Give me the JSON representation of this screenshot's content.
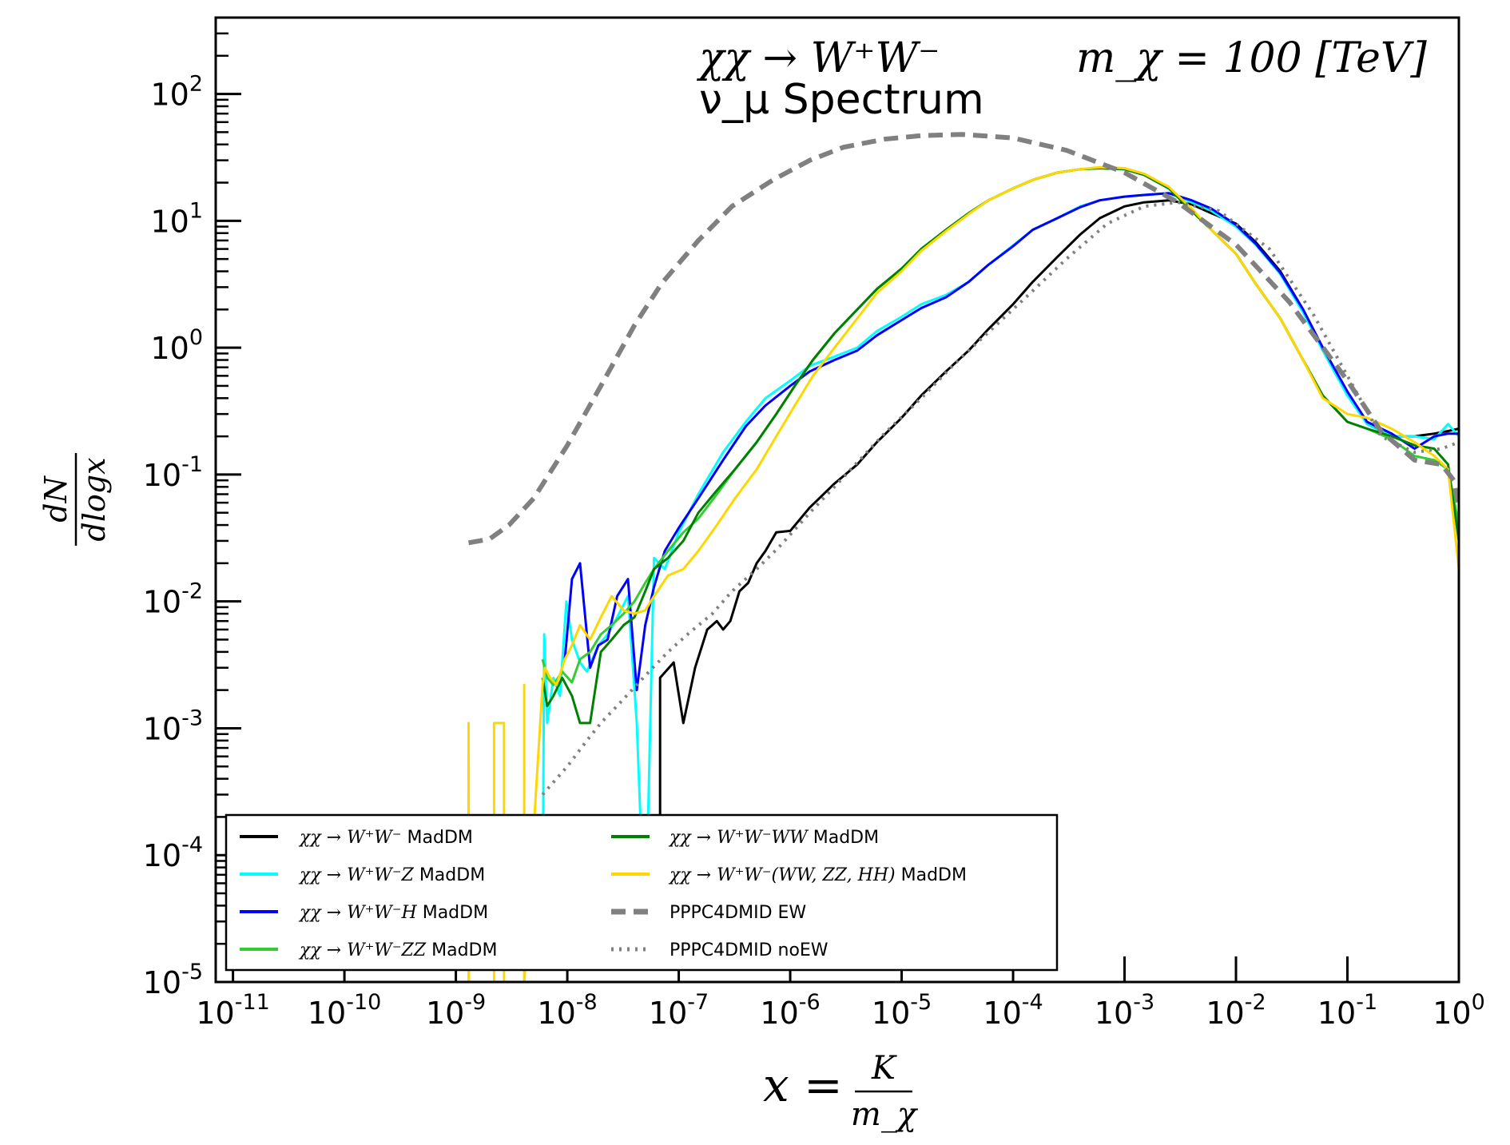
{
  "chart_data": {
    "type": "line",
    "title_line1": "χχ → W⁺W⁻",
    "title_mass": "m_χ = 100 [TeV]",
    "title_line2": "ν_μ Spectrum",
    "xlabel": "x = K / m_χ",
    "xlabel_num": "K",
    "xlabel_den": "m_χ",
    "xlabel_lhs": "x =",
    "ylabel": "dN / dlogx",
    "ylabel_num": "dN",
    "ylabel_den": "dlogx",
    "x_scale": "log",
    "y_scale": "log",
    "xlim": [
      7e-12,
      1.0
    ],
    "ylim": [
      1e-05,
      400
    ],
    "x_tick_exponents": [
      -11,
      -10,
      -9,
      -8,
      -7,
      -6,
      -5,
      -4,
      -3,
      -2,
      -1,
      0
    ],
    "y_tick_exponents": [
      -5,
      -4,
      -3,
      -2,
      -1,
      0,
      1,
      2
    ],
    "tick_base": "10",
    "legend_position": "lower-left",
    "series": [
      {
        "name": "χχ → W⁺W⁻ MadDM",
        "legend_math": "χχ → W⁺W⁻",
        "legend_suffix": " MadDM",
        "color": "#000000",
        "style": "solid",
        "x": [
          6.8e-08,
          6.8e-08,
          9e-08,
          1.1e-07,
          1.4e-07,
          1.8e-07,
          2.2e-07,
          2.5e-07,
          2.9e-07,
          3.5e-07,
          4.2e-07,
          5e-07,
          6e-07,
          7.5e-07,
          1e-06,
          1.5e-06,
          2.5e-06,
          4e-06,
          6e-06,
          1e-05,
          1.5e-05,
          2.5e-05,
          4e-05,
          6e-05,
          0.0001,
          0.00015,
          0.00025,
          0.0004,
          0.0006,
          0.001,
          0.0015,
          0.0025,
          0.004,
          0.006,
          0.01,
          0.015,
          0.025,
          0.04,
          0.06,
          0.1,
          0.15,
          0.25,
          0.4,
          0.6,
          0.8,
          1.0
        ],
        "y": [
          5e-05,
          0.0025,
          0.0033,
          0.0011,
          0.003,
          0.006,
          0.007,
          0.006,
          0.007,
          0.012,
          0.014,
          0.02,
          0.025,
          0.035,
          0.036,
          0.055,
          0.085,
          0.12,
          0.18,
          0.28,
          0.42,
          0.65,
          0.95,
          1.4,
          2.2,
          3.3,
          5.2,
          7.8,
          10.5,
          13,
          14,
          14.5,
          13.5,
          11.5,
          9.5,
          6.8,
          4.0,
          2.0,
          1.0,
          0.45,
          0.25,
          0.2,
          0.2,
          0.21,
          0.22,
          0.23
        ]
      },
      {
        "name": "χχ → W⁺W⁻Z MadDM",
        "legend_math": "χχ → W⁺W⁻Z",
        "legend_suffix": " MadDM",
        "color": "#00ffff",
        "style": "solid",
        "x": [
          6e-09,
          6.2e-09,
          6.6e-09,
          7.5e-09,
          8.6e-09,
          9.8e-09,
          1.1e-08,
          1.3e-08,
          1.5e-08,
          1.9e-08,
          2.3e-08,
          2.8e-08,
          3.5e-08,
          4.2e-08,
          5e-08,
          6e-08,
          7.5e-08,
          1e-07,
          1.5e-07,
          2.5e-07,
          4e-07,
          6e-07,
          1e-06,
          1.5e-06,
          2.5e-06,
          4e-06,
          6e-06,
          1e-05,
          1.5e-05,
          2.5e-05,
          4e-05,
          6e-05,
          0.0001,
          0.00015,
          0.00025,
          0.0004,
          0.0006,
          0.001,
          0.0015,
          0.0025,
          0.004,
          0.006,
          0.01,
          0.015,
          0.025,
          0.04,
          0.06,
          0.1,
          0.15,
          0.25,
          0.4,
          0.6,
          0.8,
          1.0
        ],
        "y": [
          2e-05,
          0.0055,
          0.0011,
          0.0025,
          0.0018,
          0.01,
          0.005,
          0.0033,
          0.0028,
          0.0045,
          0.0055,
          0.0075,
          0.011,
          0.0011,
          2e-05,
          0.022,
          0.018,
          0.035,
          0.07,
          0.15,
          0.26,
          0.4,
          0.55,
          0.72,
          0.85,
          1.0,
          1.35,
          1.75,
          2.2,
          2.6,
          3.3,
          4.5,
          6.4,
          8.5,
          10.5,
          13,
          14.5,
          15.5,
          16,
          16.5,
          14,
          12,
          9,
          6.5,
          3.8,
          1.9,
          0.95,
          0.42,
          0.25,
          0.2,
          0.2,
          0.19,
          0.25,
          0.2
        ]
      },
      {
        "name": "χχ → W⁺W⁻H MadDM",
        "legend_math": "χχ → W⁺W⁻H",
        "legend_suffix": " MadDM",
        "color": "#0000ff",
        "style": "solid",
        "x": [
          9.5e-09,
          1.1e-08,
          1.3e-08,
          1.6e-08,
          1.9e-08,
          2.3e-08,
          2.8e-08,
          3.5e-08,
          4.2e-08,
          5e-08,
          6e-08,
          7.5e-08,
          1e-07,
          1.5e-07,
          2.5e-07,
          4e-07,
          6e-07,
          1e-06,
          1.5e-06,
          2.5e-06,
          4e-06,
          6e-06,
          1e-05,
          1.5e-05,
          2.5e-05,
          4e-05,
          6e-05,
          0.0001,
          0.00015,
          0.00025,
          0.0004,
          0.0006,
          0.001,
          0.0015,
          0.0025,
          0.004,
          0.006,
          0.01,
          0.015,
          0.025,
          0.04,
          0.06,
          0.1,
          0.15,
          0.25,
          0.4,
          0.6,
          0.8,
          1.0
        ],
        "y": [
          0.0035,
          0.015,
          0.02,
          0.003,
          0.0045,
          0.005,
          0.011,
          0.015,
          0.002,
          0.0065,
          0.013,
          0.025,
          0.038,
          0.065,
          0.13,
          0.24,
          0.35,
          0.5,
          0.65,
          0.8,
          0.95,
          1.25,
          1.65,
          2.05,
          2.5,
          3.3,
          4.5,
          6.3,
          8.5,
          10.5,
          12.8,
          14.5,
          15.5,
          16,
          16.5,
          14.5,
          12.5,
          9.3,
          6.6,
          3.9,
          2.0,
          1.0,
          0.45,
          0.26,
          0.21,
          0.16,
          0.2,
          0.21,
          0.21
        ]
      },
      {
        "name": "χχ → W⁺W⁻ZZ MadDM",
        "legend_math": "χχ → W⁺W⁻ZZ",
        "legend_suffix": " MadDM",
        "color": "#33cc33",
        "style": "solid",
        "x": [
          6e-09,
          6.6e-09,
          7.5e-09,
          9e-09,
          1.1e-08,
          1.3e-08,
          1.6e-08,
          2e-08,
          2.5e-08,
          3.2e-08,
          4e-08,
          5e-08,
          6e-08,
          8e-08,
          1.1e-07,
          1.5e-07,
          2.2e-07,
          3.2e-07,
          5e-07,
          7.5e-07,
          1.1e-06,
          1.6e-06,
          2.5e-06,
          4e-06,
          6e-06,
          1e-05,
          1.5e-05,
          2.5e-05,
          4e-05,
          6e-05,
          0.0001,
          0.00015,
          0.00025,
          0.0004,
          0.0006,
          0.001,
          0.0015,
          0.0025,
          0.004,
          0.006,
          0.01,
          0.015,
          0.025,
          0.04,
          0.06,
          0.1,
          0.15,
          0.25,
          0.4,
          0.6,
          0.8,
          1.0
        ],
        "y": [
          0.0035,
          0.0025,
          0.0022,
          0.0028,
          0.0023,
          0.0035,
          0.004,
          0.0055,
          0.0065,
          0.008,
          0.01,
          0.014,
          0.018,
          0.025,
          0.035,
          0.045,
          0.07,
          0.11,
          0.18,
          0.3,
          0.5,
          0.8,
          1.3,
          2.0,
          2.9,
          4.2,
          6.0,
          8.5,
          11.5,
          14.5,
          18,
          21,
          24,
          25.5,
          26,
          25.5,
          23,
          18,
          12,
          8.5,
          5.5,
          3.2,
          1.7,
          0.8,
          0.42,
          0.26,
          0.23,
          0.19,
          0.14,
          0.13,
          0.11,
          0.04
        ]
      },
      {
        "name": "χχ → W⁺W⁻WW MadDM",
        "legend_math": "χχ → W⁺W⁻WW",
        "legend_suffix": " MadDM",
        "color": "#008000",
        "style": "solid",
        "x": [
          6e-09,
          6.6e-09,
          7.5e-09,
          9e-09,
          1.1e-08,
          1.3e-08,
          1.6e-08,
          2e-08,
          2.5e-08,
          3.2e-08,
          4e-08,
          5e-08,
          6e-08,
          8e-08,
          1.1e-07,
          1.5e-07,
          2.2e-07,
          3.2e-07,
          5e-07,
          7.5e-07,
          1.1e-06,
          1.6e-06,
          2.5e-06,
          4e-06,
          6e-06,
          1e-05,
          1.5e-05,
          2.5e-05,
          4e-05,
          6e-05,
          0.0001,
          0.00015,
          0.00025,
          0.0004,
          0.0006,
          0.001,
          0.0015,
          0.0025,
          0.004,
          0.006,
          0.01,
          0.015,
          0.025,
          0.04,
          0.06,
          0.1,
          0.15,
          0.25,
          0.4,
          0.6,
          0.8,
          1.0
        ],
        "y": [
          0.0025,
          0.0015,
          0.0018,
          0.0025,
          0.0018,
          0.0011,
          0.0011,
          0.004,
          0.005,
          0.0065,
          0.0075,
          0.012,
          0.018,
          0.022,
          0.03,
          0.05,
          0.075,
          0.11,
          0.18,
          0.3,
          0.5,
          0.8,
          1.3,
          2.0,
          2.9,
          4.2,
          6.0,
          8.5,
          11.5,
          14.5,
          18,
          21,
          24,
          25.5,
          26,
          25.5,
          23,
          18,
          12,
          8.5,
          5.5,
          3.2,
          1.7,
          0.8,
          0.42,
          0.26,
          0.23,
          0.2,
          0.17,
          0.16,
          0.12,
          0.03
        ]
      },
      {
        "name": "χχ → W⁺W⁻(WW, ZZ, HH) MadDM",
        "legend_math": "χχ → W⁺W⁻(WW, ZZ, HH)",
        "legend_suffix": " MadDM",
        "color": "#ffd700",
        "style": "solid",
        "x": [
          1.3e-09,
          1.3e-09,
          1.31e-09,
          2.2e-09,
          2.2e-09,
          2.7e-09,
          2.7e-09,
          2.71e-09,
          4.1e-09,
          4.1e-09,
          4.11e-09,
          6e-09,
          6.3e-09,
          7e-09,
          8e-09,
          9.5e-09,
          1.1e-08,
          1.3e-08,
          1.6e-08,
          2e-08,
          2.5e-08,
          3.2e-08,
          4e-08,
          5e-08,
          6e-08,
          8e-08,
          1.1e-07,
          1.5e-07,
          2.2e-07,
          3.2e-07,
          5e-07,
          7.5e-07,
          1.1e-06,
          1.6e-06,
          2.5e-06,
          4e-06,
          6e-06,
          1e-05,
          1.5e-05,
          2.5e-05,
          4e-05,
          6e-05,
          0.0001,
          0.00015,
          0.00025,
          0.0004,
          0.0006,
          0.001,
          0.0015,
          0.0025,
          0.004,
          0.006,
          0.01,
          0.015,
          0.025,
          0.04,
          0.06,
          0.1,
          0.15,
          0.25,
          0.4,
          0.6,
          0.8,
          1.0
        ],
        "y": [
          1e-05,
          0.0011,
          1e-05,
          1e-05,
          0.0011,
          0.0011,
          1e-05,
          1e-05,
          1e-05,
          0.0022,
          1e-05,
          0.0022,
          0.003,
          0.0025,
          0.0022,
          0.0035,
          0.0045,
          0.0065,
          0.005,
          0.0075,
          0.011,
          0.0085,
          0.008,
          0.0085,
          0.011,
          0.016,
          0.018,
          0.025,
          0.04,
          0.065,
          0.11,
          0.2,
          0.35,
          0.6,
          1.0,
          1.7,
          2.7,
          4.0,
          5.8,
          8.3,
          11.3,
          14.5,
          18,
          21,
          24,
          25.5,
          26.5,
          26,
          23.5,
          18.5,
          12.5,
          8.5,
          5.5,
          3.2,
          1.7,
          0.8,
          0.4,
          0.3,
          0.28,
          0.23,
          0.18,
          0.14,
          0.11,
          0.018
        ]
      },
      {
        "name": "PPPC4DMID EW",
        "legend_suffix": "PPPC4DMID EW",
        "color": "#808080",
        "style": "dashed",
        "x": [
          1.3e-09,
          2e-09,
          3e-09,
          5e-09,
          1e-08,
          2e-08,
          4e-08,
          7e-08,
          1.5e-07,
          3e-07,
          7e-07,
          1.5e-06,
          3e-06,
          7e-06,
          1.5e-05,
          3.5e-05,
          0.0001,
          0.0003,
          0.001,
          0.003,
          0.01,
          0.03,
          0.1,
          0.2,
          0.4,
          0.7,
          0.9,
          1.0
        ],
        "y": [
          0.029,
          0.031,
          0.04,
          0.065,
          0.17,
          0.5,
          1.5,
          3.2,
          7,
          13,
          21,
          30,
          38,
          44,
          47,
          48,
          45,
          36,
          24,
          14,
          6.5,
          2.3,
          0.55,
          0.22,
          0.13,
          0.12,
          0.09,
          0.055
        ]
      },
      {
        "name": "PPPC4DMID noEW",
        "legend_suffix": "PPPC4DMID noEW",
        "color": "#808080",
        "style": "dotted",
        "x": [
          6e-09,
          8e-09,
          1e-08,
          1.5e-08,
          2e-08,
          3e-08,
          5e-08,
          8e-08,
          1.2e-07,
          2e-07,
          3e-07,
          5e-07,
          8e-07,
          1.5e-06,
          3e-06,
          7e-06,
          1.5e-05,
          3e-05,
          7e-05,
          0.00015,
          0.0003,
          0.0007,
          0.0015,
          0.003,
          0.007,
          0.02,
          0.05,
          0.1,
          0.2,
          0.4,
          0.7,
          1.0
        ],
        "y": [
          0.0003,
          0.0004,
          0.0005,
          0.0008,
          0.0011,
          0.0016,
          0.0026,
          0.004,
          0.0055,
          0.008,
          0.012,
          0.018,
          0.027,
          0.05,
          0.095,
          0.21,
          0.4,
          0.75,
          1.5,
          2.8,
          5,
          9.5,
          13,
          14,
          12,
          6,
          1.8,
          0.6,
          0.2,
          0.15,
          0.16,
          0.18
        ]
      }
    ]
  }
}
